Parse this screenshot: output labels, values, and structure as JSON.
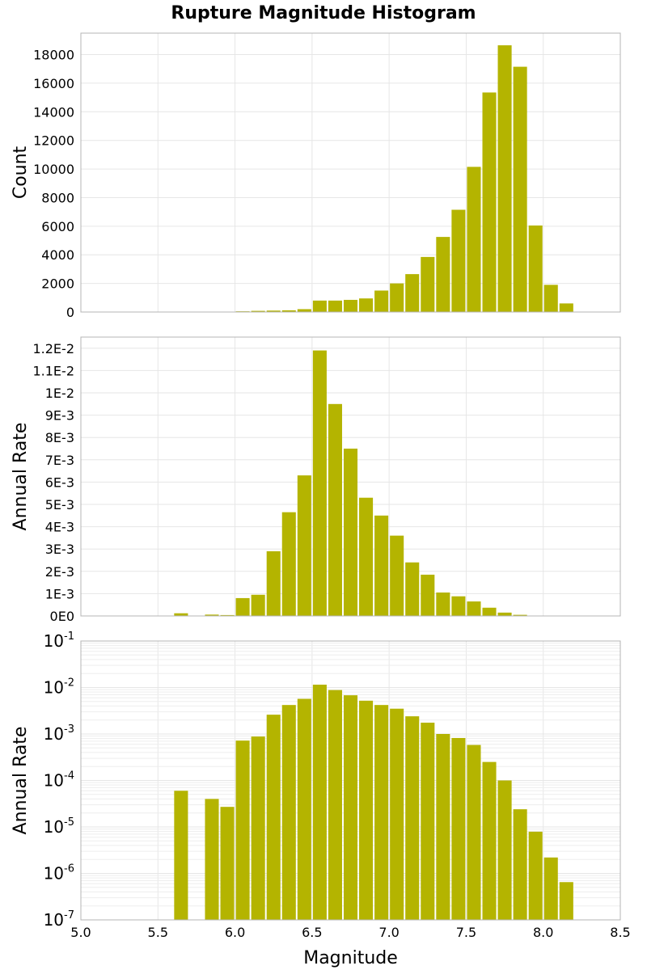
{
  "title": "Rupture Magnitude Histogram",
  "bar_color": "#b4b400",
  "chart_data": [
    {
      "type": "bar",
      "title": "Rupture Magnitude Histogram",
      "xlabel": "",
      "ylabel": "Count",
      "xlim": [
        5.0,
        8.5
      ],
      "ylim": [
        0,
        19500
      ],
      "bin_width": 0.1,
      "y_ticks": [
        0,
        2000,
        4000,
        6000,
        8000,
        10000,
        12000,
        14000,
        16000,
        18000
      ],
      "y_tick_labels": [
        "0",
        "2000",
        "4000",
        "6000",
        "8000",
        "10000",
        "12000",
        "14000",
        "16000",
        "18000"
      ],
      "grid": true,
      "x": [
        5.6,
        5.8,
        5.9,
        6.0,
        6.1,
        6.2,
        6.3,
        6.4,
        6.5,
        6.6,
        6.7,
        6.8,
        6.9,
        7.0,
        7.1,
        7.2,
        7.3,
        7.4,
        7.5,
        7.6,
        7.7,
        7.8,
        7.9,
        8.0,
        8.1
      ],
      "values": [
        10,
        20,
        20,
        50,
        80,
        100,
        120,
        200,
        800,
        800,
        850,
        950,
        1500,
        2000,
        2650,
        3850,
        5250,
        7150,
        10150,
        15350,
        18650,
        17150,
        6050,
        1900,
        600
      ]
    },
    {
      "type": "bar",
      "xlabel": "",
      "ylabel": "Annual Rate",
      "xlim": [
        5.0,
        8.5
      ],
      "ylim": [
        0,
        0.0125
      ],
      "bin_width": 0.1,
      "y_ticks": [
        0,
        0.001,
        0.002,
        0.003,
        0.004,
        0.005,
        0.006,
        0.007,
        0.008,
        0.009,
        0.01,
        0.011,
        0.012
      ],
      "y_tick_labels": [
        "0E0",
        "1E-3",
        "2E-3",
        "3E-3",
        "4E-3",
        "5E-3",
        "6E-3",
        "7E-3",
        "8E-3",
        "9E-3",
        "1E-2",
        "1.1E-2",
        "1.2E-2"
      ],
      "grid": true,
      "x": [
        5.6,
        5.8,
        5.9,
        6.0,
        6.1,
        6.2,
        6.3,
        6.4,
        6.5,
        6.6,
        6.7,
        6.8,
        6.9,
        7.0,
        7.1,
        7.2,
        7.3,
        7.4,
        7.5,
        7.6,
        7.7,
        7.8,
        7.9,
        8.0,
        8.1
      ],
      "values": [
        0.00012,
        6e-05,
        4e-05,
        0.0008,
        0.00095,
        0.0029,
        0.00465,
        0.0063,
        0.0119,
        0.0095,
        0.0075,
        0.0053,
        0.0045,
        0.0036,
        0.0024,
        0.00185,
        0.00105,
        0.00088,
        0.00065,
        0.00037,
        0.00015,
        5e-05,
        5e-06,
        2.5e-06,
        7e-07
      ]
    },
    {
      "type": "bar",
      "xlabel": "Magnitude",
      "ylabel": "Annual Rate",
      "xlim": [
        5.0,
        8.5
      ],
      "ylim": [
        1e-07,
        0.1
      ],
      "y_scale": "log",
      "bin_width": 0.1,
      "y_ticks": [
        1e-07,
        1e-06,
        1e-05,
        0.0001,
        0.001,
        0.01,
        0.1
      ],
      "y_tick_labels": [
        {
          "base": "10",
          "exp": "-7"
        },
        {
          "base": "10",
          "exp": "-6"
        },
        {
          "base": "10",
          "exp": "-5"
        },
        {
          "base": "10",
          "exp": "-4"
        },
        {
          "base": "10",
          "exp": "-3"
        },
        {
          "base": "10",
          "exp": "-2"
        },
        {
          "base": "10",
          "exp": "-1"
        }
      ],
      "x_ticks": [
        5.0,
        5.5,
        6.0,
        6.5,
        7.0,
        7.5,
        8.0,
        8.5
      ],
      "x_tick_labels": [
        "5.0",
        "5.5",
        "6.0",
        "6.5",
        "7.0",
        "7.5",
        "8.0",
        "8.5"
      ],
      "grid": true,
      "x": [
        5.6,
        5.8,
        5.9,
        6.0,
        6.1,
        6.2,
        6.3,
        6.4,
        6.5,
        6.6,
        6.7,
        6.8,
        6.9,
        7.0,
        7.1,
        7.2,
        7.3,
        7.4,
        7.5,
        7.6,
        7.7,
        7.8,
        7.9,
        8.0,
        8.1
      ],
      "values": [
        6e-05,
        4e-05,
        2.7e-05,
        0.00072,
        0.00088,
        0.0026,
        0.0042,
        0.0057,
        0.0115,
        0.0088,
        0.0068,
        0.0052,
        0.0042,
        0.0035,
        0.0024,
        0.00175,
        0.001,
        0.00082,
        0.00058,
        0.00025,
        0.0001,
        2.4e-05,
        7.9e-06,
        2.2e-06,
        6.5e-07
      ]
    }
  ]
}
